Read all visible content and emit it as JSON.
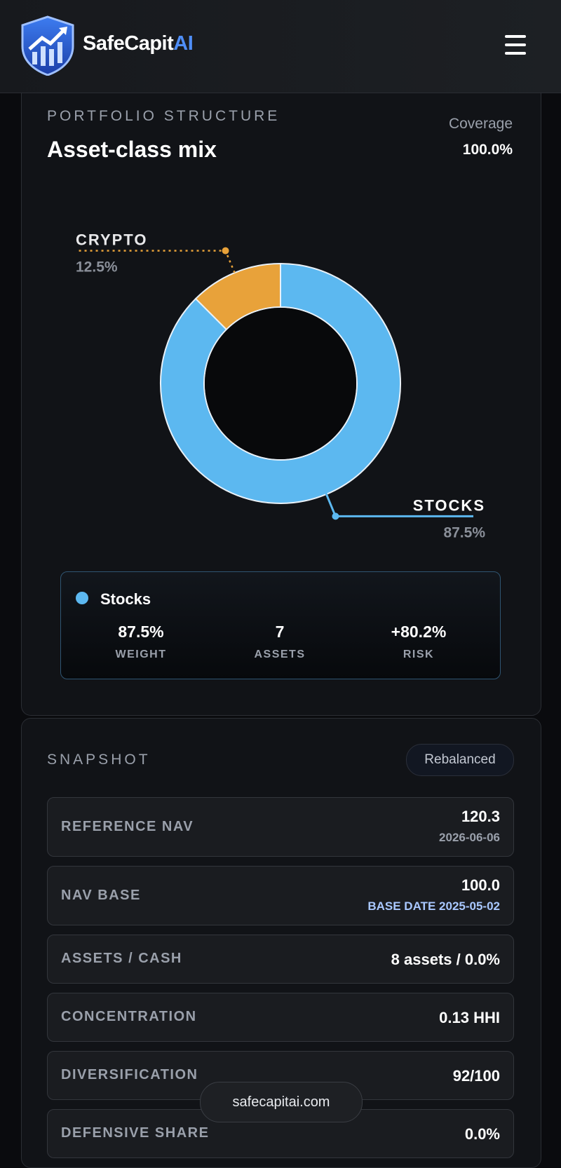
{
  "header": {
    "brand": "SafeCapit",
    "brand_accent": "AI"
  },
  "portfolio": {
    "eyebrow": "PORTFOLIO STRUCTURE",
    "title": "Asset-class mix",
    "coverage_label": "Coverage",
    "coverage_value": "100.0%"
  },
  "chart_data": {
    "type": "pie",
    "donut": true,
    "categories": [
      "STOCKS",
      "CRYPTO"
    ],
    "values": [
      87.5,
      12.5
    ],
    "value_labels": [
      "87.5%",
      "12.5%"
    ],
    "colors": [
      "#5cb8f0",
      "#e8a23a"
    ]
  },
  "detail": {
    "name": "Stocks",
    "stats": [
      {
        "value": "87.5%",
        "label": "WEIGHT"
      },
      {
        "value": "7",
        "label": "ASSETS"
      },
      {
        "value": "+80.2%",
        "label": "RISK"
      }
    ]
  },
  "snapshot": {
    "title": "SNAPSHOT",
    "badge": "Rebalanced",
    "rows": [
      {
        "label": "REFERENCE NAV",
        "value": "120.3",
        "sub": "2026-06-06"
      },
      {
        "label": "NAV BASE",
        "value": "100.0",
        "sub": "BASE DATE 2025-05-02"
      },
      {
        "label": "ASSETS / CASH",
        "value": "8 assets / 0.0%"
      },
      {
        "label": "CONCENTRATION",
        "value": "0.13 HHI"
      },
      {
        "label": "DIVERSIFICATION",
        "value": "92/100"
      },
      {
        "label": "DEFENSIVE SHARE",
        "value": "0.0%"
      }
    ]
  },
  "footer": {
    "domain": "safecapitai.com"
  }
}
